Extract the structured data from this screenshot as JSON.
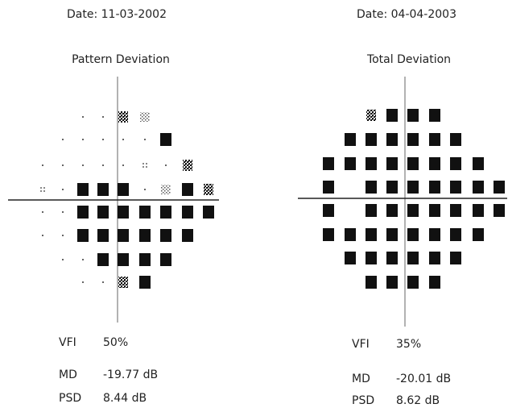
{
  "panels": [
    {
      "date": "Date: 11-03-2002",
      "title": "Pattern Deviation",
      "indices": [
        {
          "label": "VFI",
          "value": "50%"
        },
        {
          "label": "MD",
          "value": "-19.77 dB"
        },
        {
          "label": "PSD",
          "value": "8.44 dB"
        }
      ]
    },
    {
      "date": "Date: 04-04-2003",
      "title": "Total Deviation",
      "indices": [
        {
          "label": "VFI",
          "value": "35%"
        },
        {
          "label": "MD",
          "value": "-20.01 dB"
        },
        {
          "label": "PSD",
          "value": "8.62 dB"
        }
      ]
    }
  ]
}
